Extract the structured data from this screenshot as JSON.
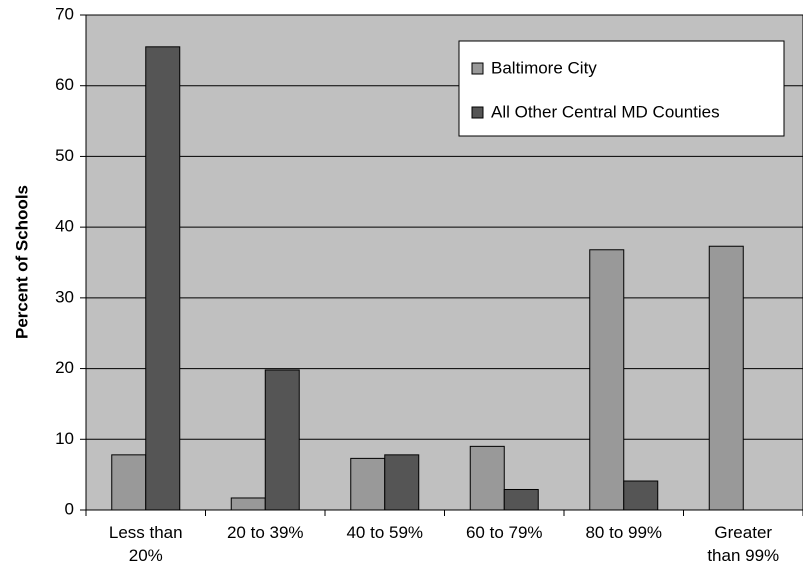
{
  "chart_data": {
    "type": "bar",
    "title": "",
    "xlabel": "",
    "ylabel": "Percent of Schools",
    "ylim": [
      0,
      70
    ],
    "yticks": [
      0,
      10,
      20,
      30,
      40,
      50,
      60,
      70
    ],
    "grid": "horizontal",
    "legend_position": "top-right",
    "categories": [
      [
        "Less than",
        "20%"
      ],
      [
        "20 to 39%"
      ],
      [
        "40 to 59%"
      ],
      [
        "60 to 79%"
      ],
      [
        "80 to 99%"
      ],
      [
        "Greater",
        "than 99%"
      ]
    ],
    "series": [
      {
        "name": "Baltimore City",
        "color": "#999999",
        "values": [
          7.8,
          1.7,
          7.3,
          9.0,
          36.8,
          37.3
        ]
      },
      {
        "name": "All Other Central MD Counties",
        "color": "#555555",
        "values": [
          65.5,
          19.8,
          7.8,
          2.9,
          4.1,
          0
        ]
      }
    ],
    "plot_background": "#c0c0c0"
  }
}
